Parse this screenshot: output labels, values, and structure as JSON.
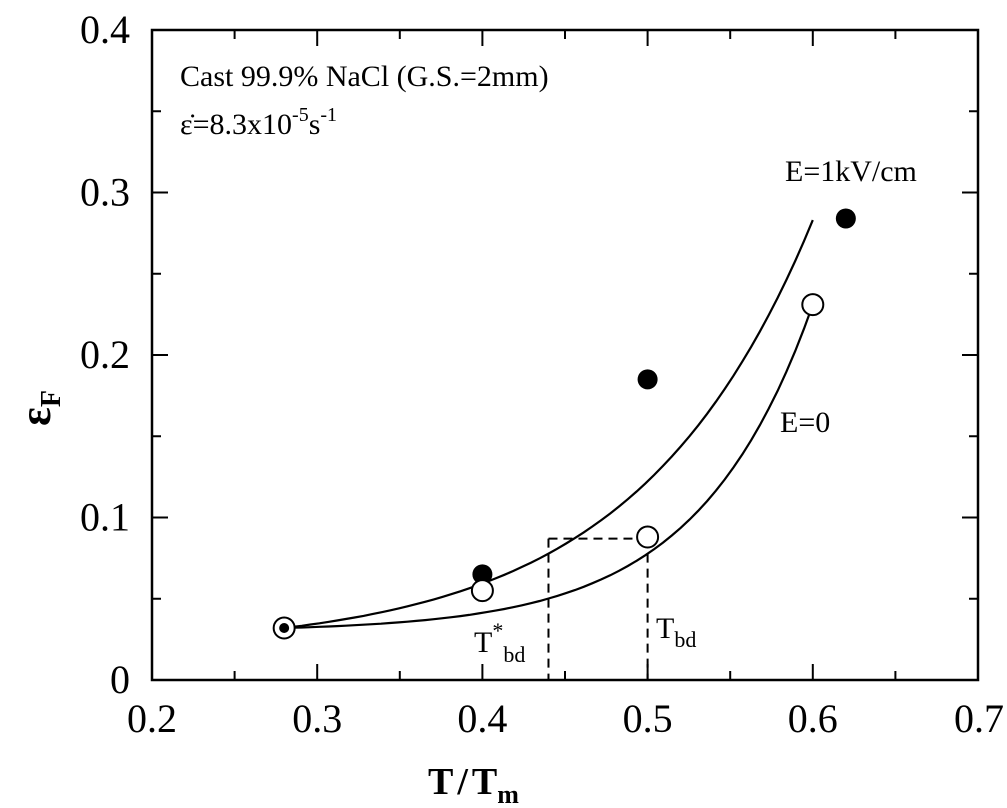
{
  "chart_data": {
    "type": "scatter",
    "xlim": [
      0.2,
      0.7
    ],
    "ylim": [
      0,
      0.4
    ],
    "x_ticks": [
      "0.2",
      "0.3",
      "0.4",
      "0.5",
      "0.6",
      "0.7"
    ],
    "y_ticks": [
      "0",
      "0.1",
      "0.2",
      "0.3",
      "0.4"
    ],
    "xlabel": {
      "main": "T",
      "slash": "/",
      "sub_main": "T",
      "sub": "m"
    },
    "ylabel": {
      "main": "ε",
      "sub": "F"
    },
    "annotations": {
      "material": "Cast 99.9% NaCl (G.S.=2mm)",
      "strain_rate_prefix": "ε̇=8.3x10",
      "strain_rate_exp1": "-5",
      "strain_rate_mid": "s",
      "strain_rate_exp2": "-1",
      "t_star_main": "T",
      "t_star_sup": "*",
      "t_star_sub": "bd",
      "t_bd_main": "T",
      "t_bd_sub": "bd"
    },
    "series": [
      {
        "name": "E=1kV/cm",
        "marker": "filled-circle",
        "x": [
          0.28,
          0.4,
          0.5,
          0.62
        ],
        "y": [
          0.032,
          0.065,
          0.185,
          0.284
        ],
        "fit_curve": {
          "x_start": 0.28,
          "x_end": 0.6,
          "y_start": 0.032,
          "y_end": 0.283
        }
      },
      {
        "name": "E=0",
        "marker": "open-circle",
        "x": [
          0.28,
          0.4,
          0.5,
          0.6
        ],
        "y": [
          0.032,
          0.055,
          0.088,
          0.231
        ],
        "fit_curve": {
          "x_start": 0.28,
          "x_end": 0.6,
          "y_start": 0.032,
          "y_end": 0.231
        }
      }
    ],
    "reference_lines": {
      "y_level": 0.087,
      "t_star_bd_x": 0.44,
      "t_bd_x": 0.5
    },
    "grid": false,
    "colors": {
      "ink": "#000000",
      "background": "#ffffff"
    }
  }
}
